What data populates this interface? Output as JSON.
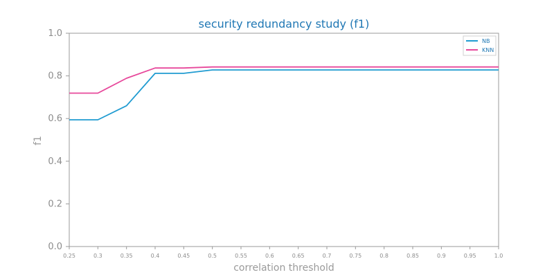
{
  "chart_data": {
    "type": "line",
    "title": "security redundancy study (f1)",
    "xlabel": "correlation threshold",
    "ylabel": "f1",
    "x": [
      0.25,
      0.3,
      0.35,
      0.4,
      0.45,
      0.5,
      0.55,
      0.6,
      0.65,
      0.7,
      0.75,
      0.8,
      0.85,
      0.9,
      0.95,
      1.0
    ],
    "x_tick_labels": [
      "0.25",
      "0.3",
      "0.35",
      "0.4",
      "0.45",
      "0.5",
      "0.55",
      "0.6",
      "0.65",
      "0.7",
      "0.75",
      "0.8",
      "0.85",
      "0.9",
      "0.95",
      "1.0"
    ],
    "y_ticks": [
      0.0,
      0.2,
      0.4,
      0.6,
      0.8,
      1.0
    ],
    "y_tick_labels": [
      "0.0",
      "0.2",
      "0.4",
      "0.6",
      "0.8",
      "1.0"
    ],
    "xlim": [
      0.25,
      1.0
    ],
    "ylim": [
      0.0,
      1.0
    ],
    "grid": false,
    "legend_position": "top-right",
    "series": [
      {
        "name": "NB",
        "color": "#1f9bd1",
        "values": [
          0.594,
          0.594,
          0.66,
          0.812,
          0.812,
          0.828,
          0.828,
          0.828,
          0.828,
          0.828,
          0.828,
          0.828,
          0.828,
          0.828,
          0.828,
          0.828
        ]
      },
      {
        "name": "KNN",
        "color": "#e7489b",
        "values": [
          0.719,
          0.719,
          0.789,
          0.837,
          0.837,
          0.842,
          0.842,
          0.842,
          0.842,
          0.842,
          0.842,
          0.842,
          0.842,
          0.842,
          0.842,
          0.842
        ]
      }
    ]
  }
}
